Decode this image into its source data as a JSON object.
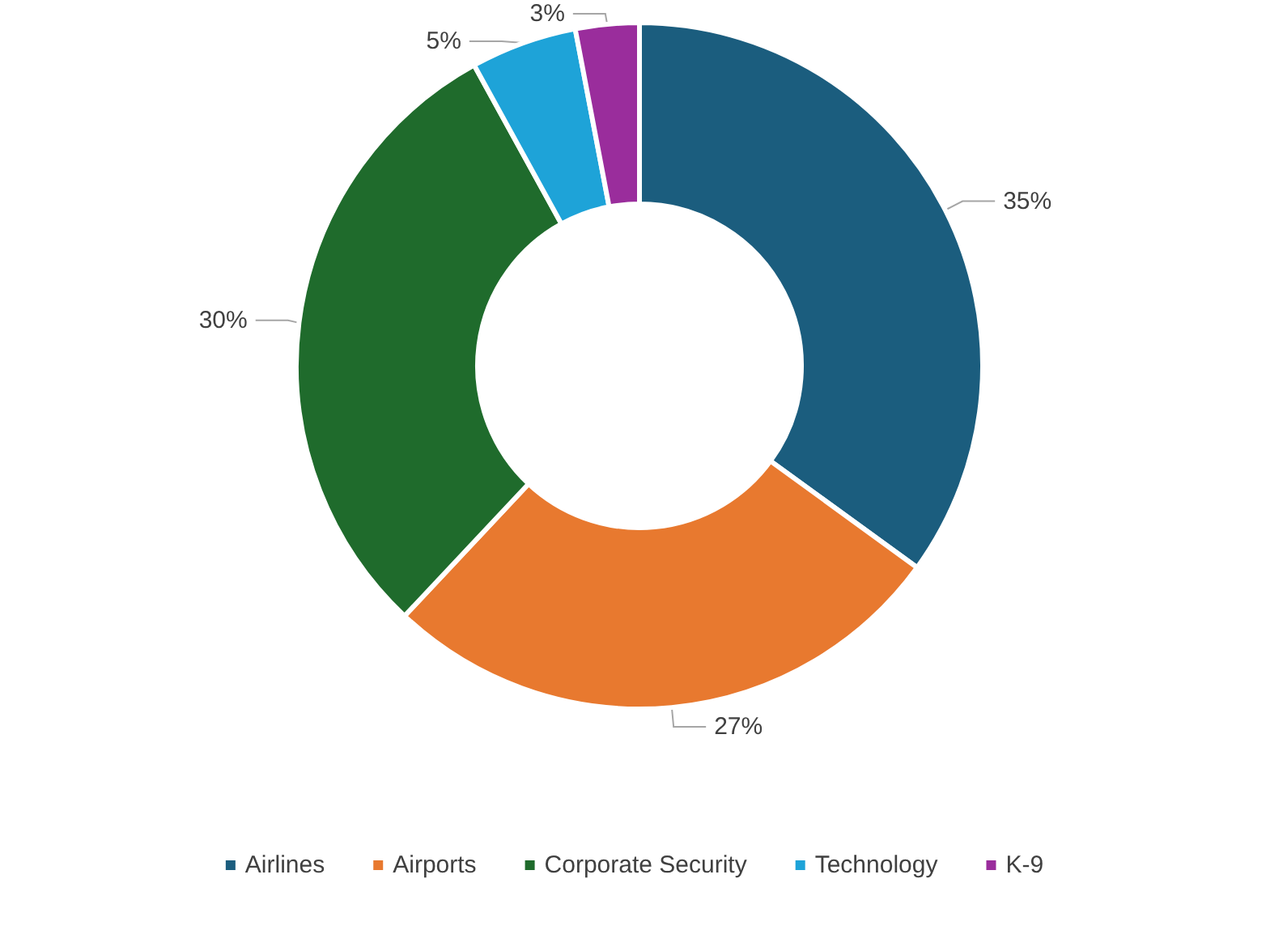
{
  "chart_data": {
    "type": "donut",
    "categories": [
      "Airlines",
      "Airports",
      "Corporate Security",
      "Technology",
      "K-9"
    ],
    "values": [
      35,
      27,
      30,
      5,
      3
    ],
    "colors": [
      "#1b5d7e",
      "#e8792f",
      "#1f6b2c",
      "#1ea3d8",
      "#9a2d9c"
    ],
    "value_labels": [
      "35%",
      "27%",
      "30%",
      "5%",
      "3%"
    ],
    "legend": "bottom"
  }
}
